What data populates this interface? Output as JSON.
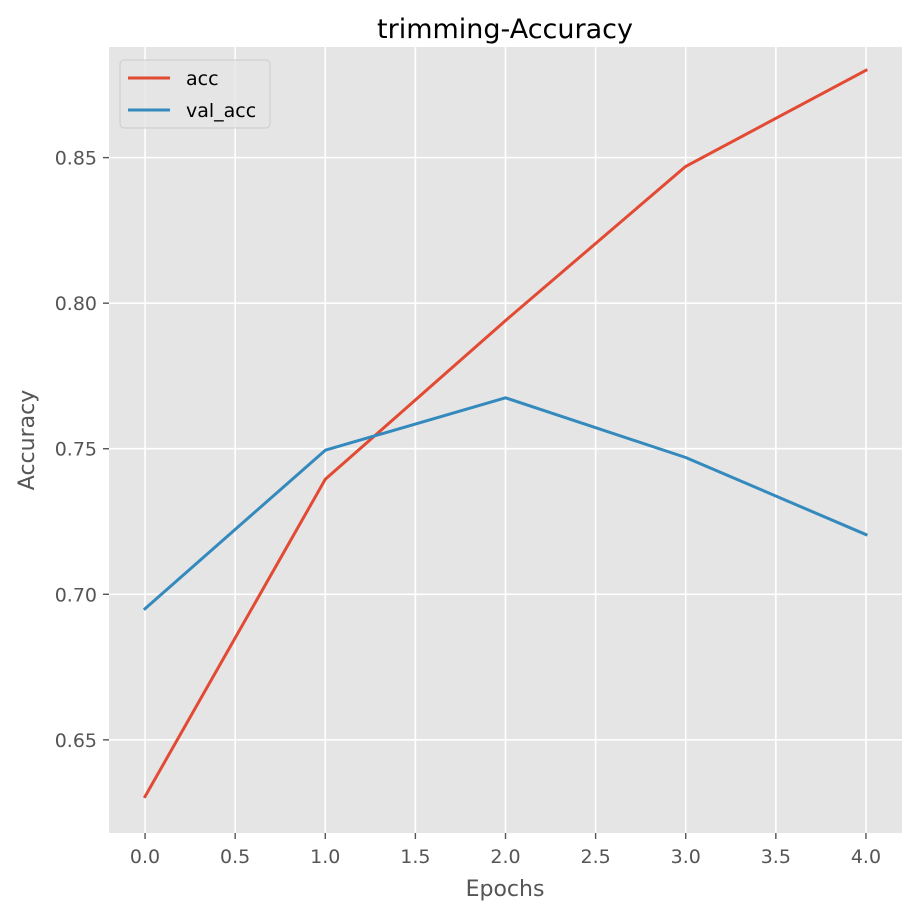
{
  "chart_data": {
    "type": "line",
    "title": "trimming-Accuracy",
    "xlabel": "Epochs",
    "ylabel": "Accuracy",
    "x": [
      0,
      1,
      2,
      3,
      4
    ],
    "xlim": [
      -0.2,
      4.2
    ],
    "ylim": [
      0.618,
      0.888
    ],
    "xticks": [
      0.0,
      0.5,
      1.0,
      1.5,
      2.0,
      2.5,
      3.0,
      3.5,
      4.0
    ],
    "xtick_labels": [
      "0.0",
      "0.5",
      "1.0",
      "1.5",
      "2.0",
      "2.5",
      "3.0",
      "3.5",
      "4.0"
    ],
    "yticks": [
      0.65,
      0.7,
      0.75,
      0.8,
      0.85
    ],
    "ytick_labels": [
      "0.65",
      "0.70",
      "0.75",
      "0.80",
      "0.85"
    ],
    "grid": true,
    "legend_position": "top-left",
    "series": [
      {
        "name": "acc",
        "color": "#E24A33",
        "values": [
          0.6305,
          0.7395,
          0.794,
          0.847,
          0.88
        ]
      },
      {
        "name": "val_acc",
        "color": "#348ABD",
        "values": [
          0.695,
          0.7495,
          0.7675,
          0.747,
          0.7205
        ]
      }
    ],
    "style": {
      "plot_background": "#E5E5E5",
      "grid_color": "#FFFFFF"
    }
  }
}
